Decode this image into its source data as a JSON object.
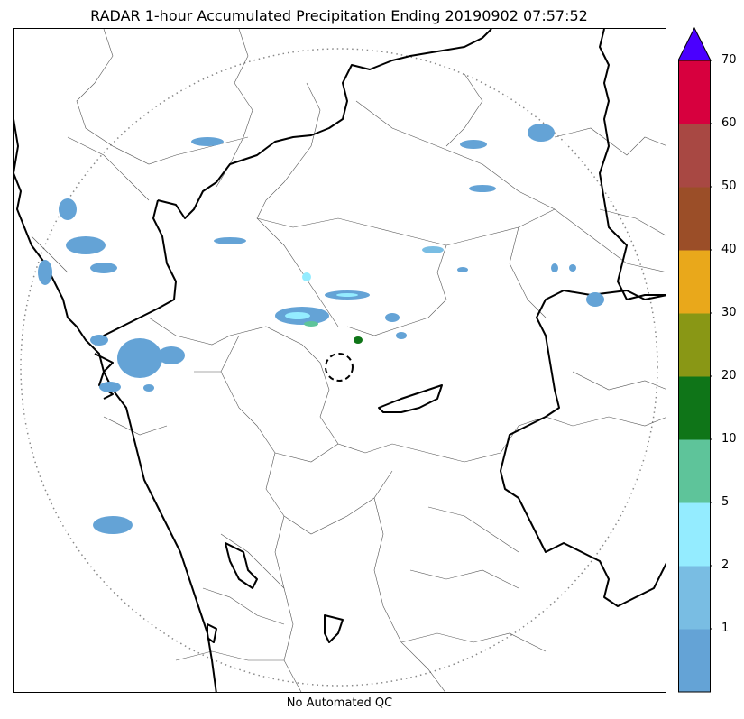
{
  "title": "RADAR 1-hour Accumulated Precipitation Ending 20190902 07:57:52",
  "footnote": "No Automated QC",
  "colorbar": {
    "units_max_arrow_color": "#4a00ff",
    "bins": [
      {
        "color": "#64a3d6"
      },
      {
        "color": "#79bde3"
      },
      {
        "color": "#94ecff"
      },
      {
        "color": "#5ec49a"
      },
      {
        "color": "#0f7518"
      },
      {
        "color": "#899715"
      },
      {
        "color": "#e9a81b"
      },
      {
        "color": "#9b4e28"
      },
      {
        "color": "#a84843"
      },
      {
        "color": "#d7003e"
      }
    ],
    "tick_labels": [
      "1",
      "2",
      "5",
      "10",
      "20",
      "30",
      "40",
      "50",
      "60",
      "70"
    ]
  },
  "map": {
    "range_ring_color": "#888888",
    "precip_color": "#64a3d6",
    "light_precip_color": "#79bde3",
    "cyan_color": "#94ecff",
    "green_color": "#0f7518",
    "radar_site_marker": "dashed-circle"
  }
}
